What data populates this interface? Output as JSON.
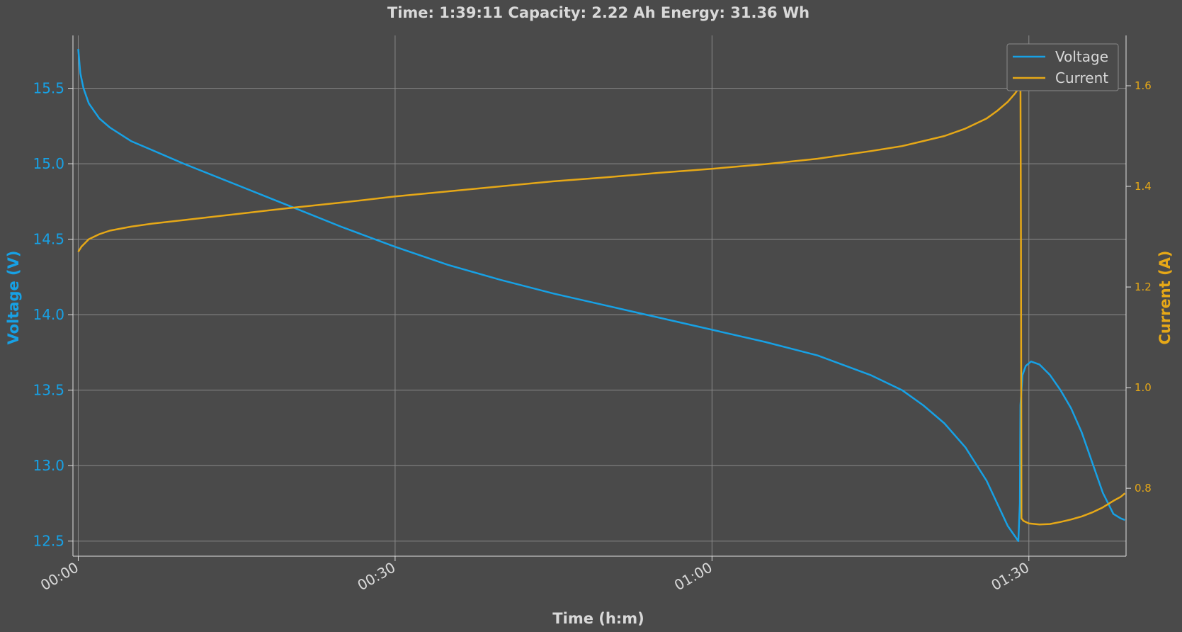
{
  "chart_data": {
    "type": "line",
    "title": "Time: 1:39:11  Capacity: 2.22 Ah  Energy: 31.36 Wh",
    "xlabel": "Time (h:m)",
    "ylabel_left": "Voltage (V)",
    "ylabel_right": "Current (A)",
    "x_ticks": [
      {
        "min": 0,
        "label": "00:00"
      },
      {
        "min": 30,
        "label": "00:30"
      },
      {
        "min": 60,
        "label": "01:00"
      },
      {
        "min": 90,
        "label": "01:30"
      }
    ],
    "xlim_min": [
      -0.5,
      99.2
    ],
    "ylim_left": [
      12.4,
      15.85
    ],
    "yticks_left": [
      "12.5",
      "13.0",
      "13.5",
      "14.0",
      "14.5",
      "15.0",
      "15.5"
    ],
    "ylim_right": [
      0.665,
      1.7
    ],
    "yticks_right": [
      "0.8",
      "1.0",
      "1.2",
      "1.4",
      "1.6"
    ],
    "grid": true,
    "legend_position": "top-right",
    "colors": {
      "voltage": "#17a1e5",
      "current": "#e6a817",
      "background": "#4a4a4a",
      "grid": "#8a8a8a",
      "text": "#d9d9d9"
    },
    "series": [
      {
        "name": "Voltage",
        "axis": "left",
        "x_min": [
          0,
          0.2,
          0.5,
          1,
          2,
          3,
          5,
          7,
          10,
          15,
          20,
          25,
          30,
          35,
          40,
          45,
          50,
          55,
          60,
          65,
          70,
          75,
          78,
          80,
          82,
          84,
          86,
          87,
          88,
          88.5,
          89,
          89.15,
          89.2,
          89.4,
          89.7,
          90.2,
          91,
          92,
          93,
          94,
          95,
          96,
          97,
          98,
          98.7,
          99.1
        ],
        "values": [
          15.76,
          15.6,
          15.5,
          15.4,
          15.3,
          15.24,
          15.15,
          15.09,
          15.0,
          14.86,
          14.72,
          14.58,
          14.45,
          14.33,
          14.23,
          14.14,
          14.06,
          13.98,
          13.9,
          13.82,
          13.73,
          13.6,
          13.5,
          13.4,
          13.28,
          13.12,
          12.9,
          12.75,
          12.6,
          12.55,
          12.5,
          12.75,
          13.4,
          13.6,
          13.66,
          13.69,
          13.67,
          13.6,
          13.5,
          13.38,
          13.22,
          13.02,
          12.82,
          12.68,
          12.65,
          12.64
        ]
      },
      {
        "name": "Current",
        "axis": "right",
        "x_min": [
          0,
          0.3,
          1,
          2,
          3,
          5,
          7,
          10,
          15,
          20,
          25,
          30,
          35,
          40,
          45,
          50,
          55,
          60,
          65,
          70,
          75,
          78,
          80,
          82,
          84,
          86,
          87,
          88,
          88.7,
          89.2,
          89.25,
          89.3,
          89.5,
          90,
          91,
          92,
          93,
          94,
          95,
          96,
          97,
          98,
          98.7,
          99.1
        ],
        "values": [
          1.27,
          1.28,
          1.295,
          1.305,
          1.312,
          1.32,
          1.326,
          1.333,
          1.345,
          1.357,
          1.368,
          1.38,
          1.39,
          1.4,
          1.41,
          1.418,
          1.427,
          1.435,
          1.444,
          1.455,
          1.47,
          1.48,
          1.49,
          1.5,
          1.515,
          1.535,
          1.55,
          1.568,
          1.585,
          1.6,
          1.3,
          0.74,
          0.735,
          0.73,
          0.728,
          0.729,
          0.733,
          0.738,
          0.744,
          0.752,
          0.762,
          0.775,
          0.783,
          0.79
        ]
      }
    ]
  }
}
